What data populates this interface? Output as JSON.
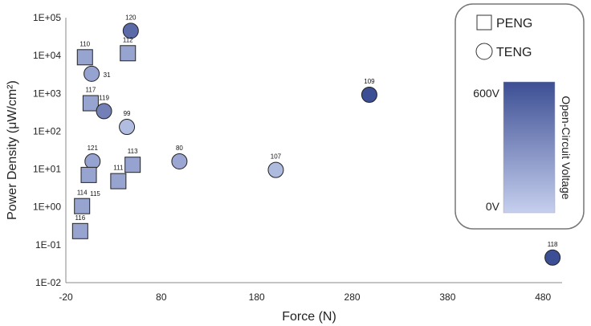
{
  "chart_data": {
    "type": "scatter",
    "title": "",
    "xlabel": "Force (N)",
    "ylabel": "Power Density (μW/cm²)",
    "xlim": [
      -20,
      500
    ],
    "x_ticks": [
      -20,
      80,
      180,
      280,
      380,
      480
    ],
    "x_tick_labels": [
      "-20",
      "80",
      "180",
      "280",
      "380",
      "480"
    ],
    "y_scale": "log",
    "ylim": [
      0.01,
      100000
    ],
    "y_ticks": [
      0.01,
      0.1,
      1,
      10,
      100,
      1000,
      10000,
      100000
    ],
    "y_tick_labels": [
      "1E-02",
      "1E-01",
      "1E+00",
      "1E+01",
      "1E+02",
      "1E+03",
      "1E+04",
      "1E+05"
    ],
    "grid": false,
    "legend": {
      "placement": "top-right",
      "entries": [
        {
          "label": "PENG",
          "marker": "square"
        },
        {
          "label": "TENG",
          "marker": "circle"
        }
      ]
    },
    "colorbar": {
      "title": "Open-Circuit Voltage",
      "max_label": "600V",
      "min_label": "0V",
      "min": 0,
      "max": 600,
      "color_low": "#c6cfee",
      "color_high": "#3d4f94"
    },
    "points": [
      {
        "label": "120",
        "shape": "circle",
        "x": 48,
        "y": 45000,
        "voltage": 470
      },
      {
        "label": "110",
        "shape": "square",
        "x": 0,
        "y": 9000,
        "voltage": 200
      },
      {
        "label": "112",
        "shape": "square",
        "x": 45,
        "y": 11500,
        "voltage": 200
      },
      {
        "label": "31",
        "shape": "circle",
        "x": 7,
        "y": 3300,
        "voltage": 210
      },
      {
        "label": "109",
        "shape": "circle",
        "x": 298,
        "y": 920,
        "voltage": 600
      },
      {
        "label": "117",
        "shape": "square",
        "x": 6,
        "y": 550,
        "voltage": 200
      },
      {
        "label": "119",
        "shape": "circle",
        "x": 20,
        "y": 340,
        "voltage": 370
      },
      {
        "label": "99",
        "shape": "circle",
        "x": 44,
        "y": 130,
        "voltage": 90
      },
      {
        "label": "121",
        "shape": "circle",
        "x": 8,
        "y": 16,
        "voltage": 210
      },
      {
        "label": "113",
        "shape": "square",
        "x": 50,
        "y": 13,
        "voltage": 210
      },
      {
        "label": "80",
        "shape": "circle",
        "x": 99,
        "y": 16,
        "voltage": 190
      },
      {
        "label": "107",
        "shape": "circle",
        "x": 200,
        "y": 9.5,
        "voltage": 100
      },
      {
        "label": "115",
        "shape": "square",
        "x": 4,
        "y": 7,
        "voltage": 200
      },
      {
        "label": "111",
        "shape": "square",
        "x": 35,
        "y": 4.8,
        "voltage": 200
      },
      {
        "label": "114",
        "shape": "square",
        "x": -3,
        "y": 1.05,
        "voltage": 200
      },
      {
        "label": "116",
        "shape": "square",
        "x": -5,
        "y": 0.23,
        "voltage": 200
      },
      {
        "label": "118",
        "shape": "circle",
        "x": 490,
        "y": 0.046,
        "voltage": 600
      }
    ]
  }
}
